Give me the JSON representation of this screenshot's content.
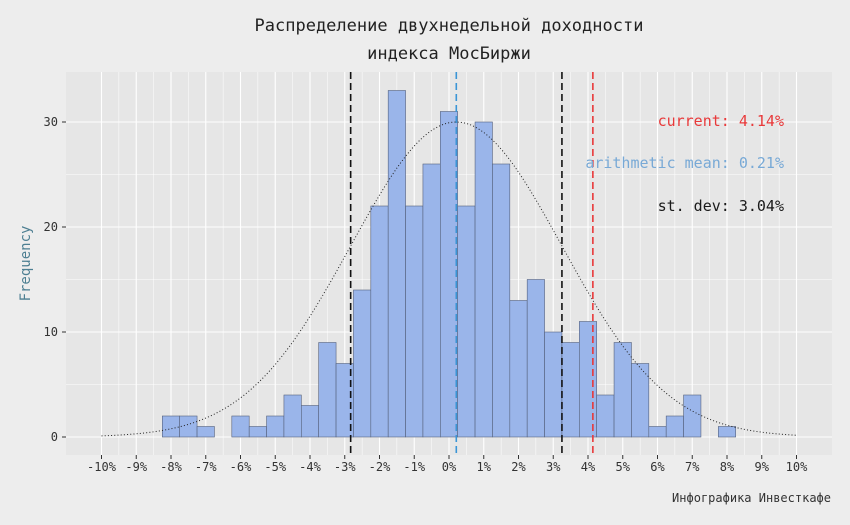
{
  "colors": {
    "bar_fill": "#9ab5ea",
    "bar_stroke": "#55617c",
    "current": "#e8393a",
    "mean": "#3a95d6",
    "sd": "#111111",
    "panel": "#e6e6e6",
    "grid": "#ffffff"
  },
  "chart_data": {
    "type": "bar",
    "title_line1": "Распределение двухнедельной доходности",
    "title_line2": "индекса МосБиржи",
    "xlabel": "",
    "ylabel": "Frequency",
    "caption": "Инфографика Инвесткафе",
    "bin_width": 0.5,
    "xlim": [
      -10,
      10
    ],
    "ylim": [
      0,
      33
    ],
    "x_ticks": [
      -10,
      -9,
      -8,
      -7,
      -6,
      -5,
      -4,
      -3,
      -2,
      -1,
      0,
      1,
      2,
      3,
      4,
      5,
      6,
      7,
      8,
      9,
      10
    ],
    "x_tick_labels": [
      "-10%",
      "-9%",
      "-8%",
      "-7%",
      "-6%",
      "-5%",
      "-4%",
      "-3%",
      "-2%",
      "-1%",
      "0%",
      "1%",
      "2%",
      "3%",
      "4%",
      "5%",
      "6%",
      "7%",
      "8%",
      "9%",
      "10%"
    ],
    "y_ticks": [
      0,
      10,
      20,
      30
    ],
    "y_tick_labels": [
      "0",
      "10",
      "20",
      "30"
    ],
    "bins": [
      {
        "start": -8.25,
        "count": 2
      },
      {
        "start": -7.75,
        "count": 2
      },
      {
        "start": -7.25,
        "count": 1
      },
      {
        "start": -6.75,
        "count": 0
      },
      {
        "start": -6.25,
        "count": 2
      },
      {
        "start": -5.75,
        "count": 1
      },
      {
        "start": -5.25,
        "count": 2
      },
      {
        "start": -4.75,
        "count": 4
      },
      {
        "start": -4.25,
        "count": 3
      },
      {
        "start": -3.75,
        "count": 9
      },
      {
        "start": -3.25,
        "count": 7
      },
      {
        "start": -2.75,
        "count": 14
      },
      {
        "start": -2.25,
        "count": 22
      },
      {
        "start": -1.75,
        "count": 33
      },
      {
        "start": -1.25,
        "count": 22
      },
      {
        "start": -0.75,
        "count": 26
      },
      {
        "start": -0.25,
        "count": 31
      },
      {
        "start": 0.25,
        "count": 22
      },
      {
        "start": 0.75,
        "count": 30
      },
      {
        "start": 1.25,
        "count": 26
      },
      {
        "start": 1.75,
        "count": 13
      },
      {
        "start": 2.25,
        "count": 15
      },
      {
        "start": 2.75,
        "count": 10
      },
      {
        "start": 3.25,
        "count": 9
      },
      {
        "start": 3.75,
        "count": 11
      },
      {
        "start": 4.25,
        "count": 4
      },
      {
        "start": 4.75,
        "count": 9
      },
      {
        "start": 5.25,
        "count": 7
      },
      {
        "start": 5.75,
        "count": 1
      },
      {
        "start": 6.25,
        "count": 2
      },
      {
        "start": 6.75,
        "count": 4
      },
      {
        "start": 7.25,
        "count": 0
      },
      {
        "start": 7.75,
        "count": 1
      }
    ],
    "normal_curve": {
      "mean": 0.21,
      "sd": 3.04,
      "peak_count": 30,
      "x_range": [
        -10,
        10
      ],
      "style": "dotted"
    },
    "vlines": {
      "current": 4.14,
      "mean": 0.21,
      "sd_low": -2.83,
      "sd_high": 3.25
    },
    "annotations": {
      "current_label": "current: 4.14%",
      "mean_label": "arithmetic mean: 0.21%",
      "sd_label": "st. dev: 3.04%"
    },
    "grid": true,
    "legend": "none"
  }
}
